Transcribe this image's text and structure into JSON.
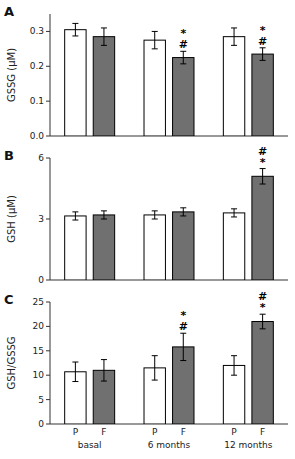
{
  "chart_data": [
    {
      "type": "bar",
      "title": "A",
      "y_label": "GSSG (μM)",
      "categories": [
        "basal",
        "6 months",
        "12 months"
      ],
      "series": [
        {
          "name": "P",
          "color": "white",
          "values": [
            0.305,
            0.275,
            0.285
          ],
          "errors": [
            0.018,
            0.025,
            0.025
          ]
        },
        {
          "name": "F",
          "color": "#707070",
          "values": [
            0.285,
            0.225,
            0.235
          ],
          "errors": [
            0.025,
            0.018,
            0.018
          ]
        }
      ],
      "ylim": [
        0,
        0.35
      ],
      "yticks": [
        {
          "value": 0,
          "label": "0.0"
        },
        0.1,
        0.2,
        0.3
      ],
      "tick_labels": "y",
      "annotations": [
        {
          "text": "#",
          "category": "6 months",
          "series": "F"
        },
        {
          "text": "*",
          "category": "6 months",
          "series": "F"
        },
        {
          "text": "#",
          "category": "12 months",
          "series": "F"
        },
        {
          "text": "*",
          "category": "12 months",
          "series": "F"
        }
      ]
    },
    {
      "type": "bar",
      "title": "B",
      "y_label": "GSH (μM)",
      "categories": [
        "basal",
        "6 months",
        "12 months"
      ],
      "series": [
        {
          "name": "P",
          "color": "white",
          "values": [
            3.15,
            3.2,
            3.3
          ],
          "errors": [
            0.2,
            0.2,
            0.2
          ]
        },
        {
          "name": "F",
          "color": "#707070",
          "values": [
            3.2,
            3.35,
            5.1
          ],
          "errors": [
            0.2,
            0.2,
            0.38
          ]
        }
      ],
      "ylim": [
        0,
        6
      ],
      "yticks": [
        0,
        3,
        6
      ],
      "tick_labels": "y",
      "annotations": [
        {
          "text": "*",
          "category": "12 months",
          "series": "F"
        },
        {
          "text": "#",
          "category": "12 months",
          "series": "F"
        }
      ]
    },
    {
      "type": "bar",
      "title": "C",
      "y_label": "GSH/GSSG",
      "categories": [
        "basal",
        "6 months",
        "12 months"
      ],
      "series": [
        {
          "name": "P",
          "color": "white",
          "values": [
            10.7,
            11.5,
            12.0
          ],
          "errors": [
            2.0,
            2.5,
            2.0
          ]
        },
        {
          "name": "F",
          "color": "#707070",
          "values": [
            11.0,
            15.8,
            21.0
          ],
          "errors": [
            2.2,
            2.8,
            1.5
          ]
        }
      ],
      "ylim": [
        0,
        25
      ],
      "yticks": [
        0,
        5,
        10,
        15,
        20,
        25
      ],
      "annotations": [
        {
          "text": "#",
          "category": "6 months",
          "series": "F"
        },
        {
          "text": "*",
          "category": "6 months",
          "series": "F"
        },
        {
          "text": "*",
          "category": "12 months",
          "series": "F"
        },
        {
          "text": "#",
          "category": "12 months",
          "series": "F"
        }
      ]
    }
  ]
}
